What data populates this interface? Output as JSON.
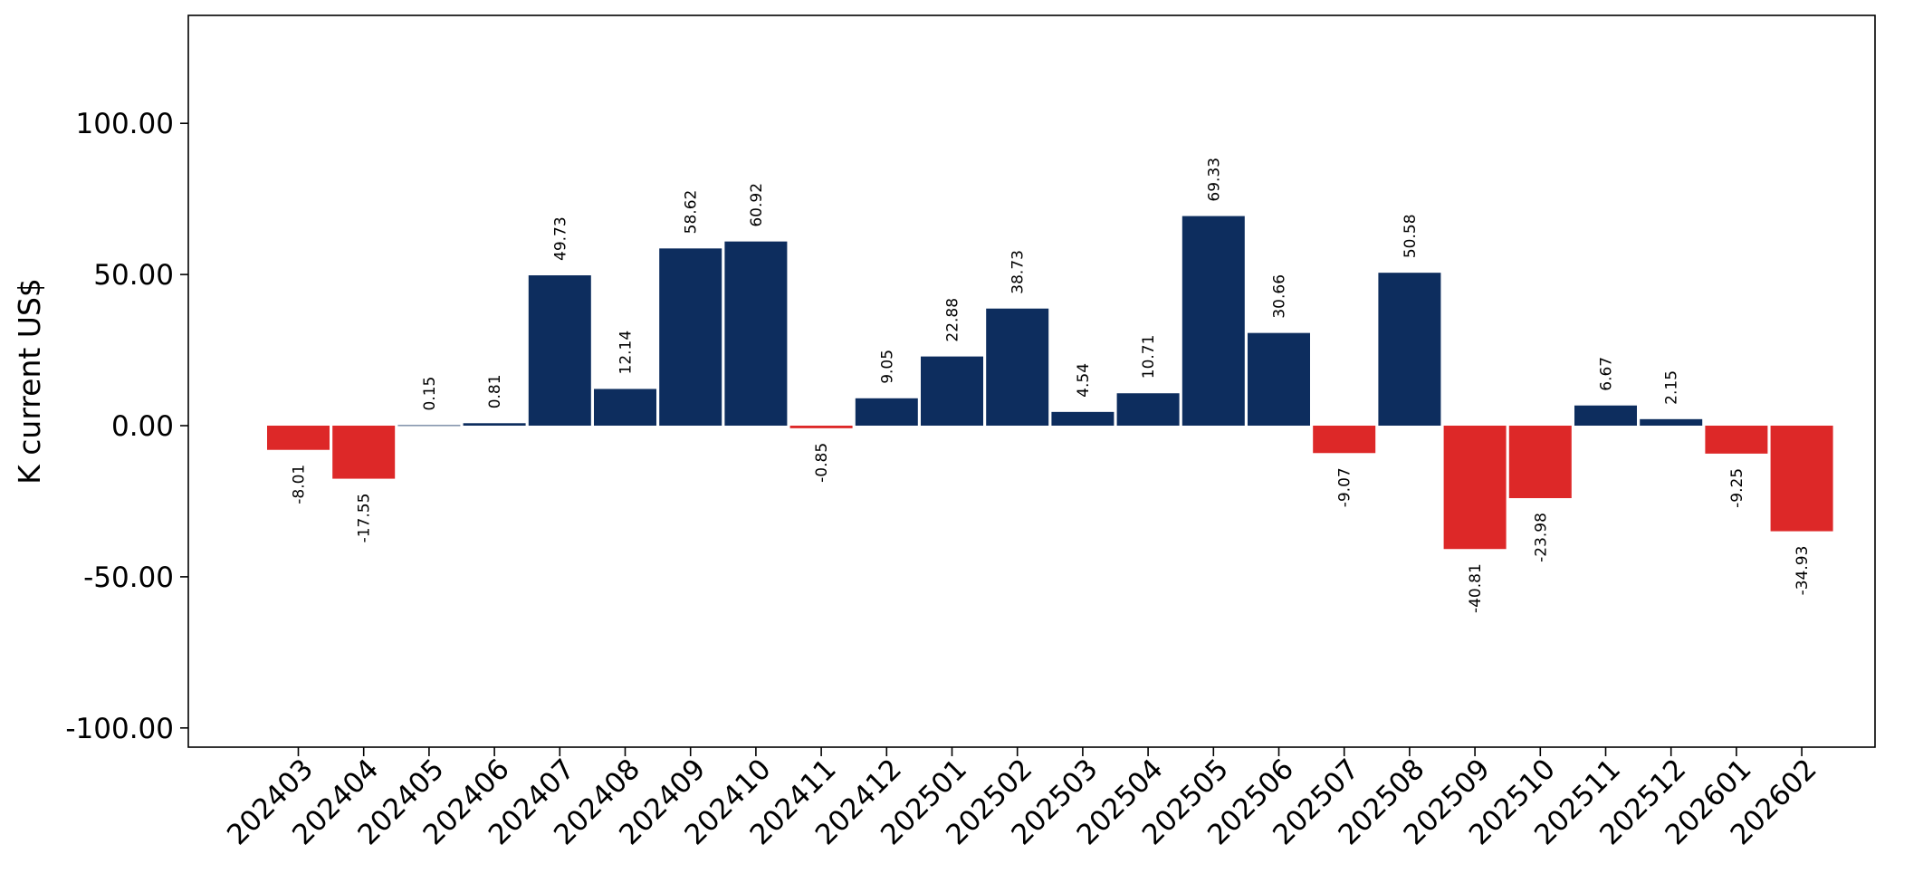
{
  "chart_data": {
    "type": "bar",
    "title": "",
    "xlabel": "",
    "ylabel": "K current US$",
    "ylim": [
      -107,
      136
    ],
    "yticks": [
      -100,
      -50,
      0,
      50,
      100
    ],
    "ytick_labels": [
      "-100.00",
      "-50.00",
      "0.00",
      "50.00",
      "100.00"
    ],
    "grid": false,
    "legend": "none",
    "colors": {
      "positive": "#0d2d5e",
      "negative": "#dd2828"
    },
    "categories": [
      "202403",
      "202404",
      "202405",
      "202406",
      "202407",
      "202408",
      "202409",
      "202410",
      "202411",
      "202412",
      "202501",
      "202502",
      "202503",
      "202504",
      "202505",
      "202506",
      "202507",
      "202508",
      "202509",
      "202510",
      "202511",
      "202512",
      "202601",
      "202602"
    ],
    "values": [
      -8.01,
      -17.55,
      0.15,
      0.81,
      49.73,
      12.14,
      58.62,
      60.92,
      -0.85,
      9.05,
      22.88,
      38.73,
      4.54,
      10.71,
      69.33,
      30.66,
      -9.07,
      50.58,
      -40.81,
      -23.98,
      6.67,
      2.15,
      -9.25,
      -34.93
    ],
    "value_labels": [
      "-8.01",
      "-17.55",
      "0.15",
      "0.81",
      "49.73",
      "12.14",
      "58.62",
      "60.92",
      "-0.85",
      "9.05",
      "22.88",
      "38.73",
      "4.54",
      "10.71",
      "69.33",
      "30.66",
      "-9.07",
      "50.58",
      "-40.81",
      "-23.98",
      "6.67",
      "2.15",
      "-9.25",
      "-34.93"
    ]
  }
}
